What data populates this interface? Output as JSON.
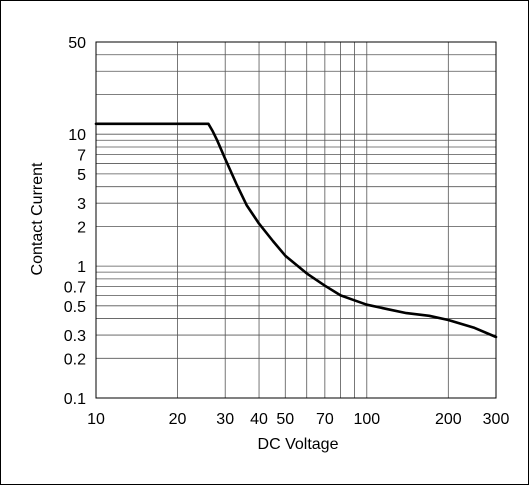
{
  "chart_data": {
    "type": "line",
    "title": "",
    "xlabel": "DC Voltage",
    "ylabel": "Contact Current",
    "x_scale": "log",
    "y_scale": "log",
    "xlim": [
      10,
      300
    ],
    "ylim": [
      0.1,
      50
    ],
    "grid": true,
    "x_ticks": [
      10,
      20,
      30,
      40,
      50,
      70,
      100,
      200,
      300
    ],
    "x_tick_labels": [
      "10",
      "20",
      "30",
      "40",
      "50",
      "70",
      "100",
      "200",
      "300"
    ],
    "y_ticks": [
      0.1,
      0.2,
      0.3,
      0.5,
      0.7,
      1,
      2,
      3,
      5,
      7,
      10,
      50
    ],
    "y_tick_labels": [
      "0.1",
      "0.2",
      "0.3",
      "0.5",
      "0.7",
      "1",
      "2",
      "3",
      "5",
      "7",
      "10",
      "50"
    ],
    "x_grid": [
      10,
      20,
      30,
      40,
      50,
      60,
      70,
      80,
      90,
      100,
      200,
      300
    ],
    "y_grid": [
      0.1,
      0.2,
      0.3,
      0.4,
      0.5,
      0.6,
      0.7,
      0.8,
      0.9,
      1,
      2,
      3,
      4,
      5,
      6,
      7,
      8,
      9,
      10,
      20,
      30,
      40,
      50
    ],
    "series": [
      {
        "name": "",
        "color": "#000000",
        "points": [
          [
            10,
            12
          ],
          [
            26,
            12
          ],
          [
            27,
            10.5
          ],
          [
            28,
            9
          ],
          [
            30,
            6.5
          ],
          [
            33,
            4.2
          ],
          [
            36,
            2.9
          ],
          [
            40,
            2.1
          ],
          [
            45,
            1.55
          ],
          [
            50,
            1.2
          ],
          [
            60,
            0.88
          ],
          [
            70,
            0.71
          ],
          [
            80,
            0.6
          ],
          [
            90,
            0.55
          ],
          [
            100,
            0.51
          ],
          [
            120,
            0.47
          ],
          [
            140,
            0.44
          ],
          [
            170,
            0.42
          ],
          [
            200,
            0.39
          ],
          [
            250,
            0.34
          ],
          [
            300,
            0.29
          ]
        ]
      }
    ]
  }
}
